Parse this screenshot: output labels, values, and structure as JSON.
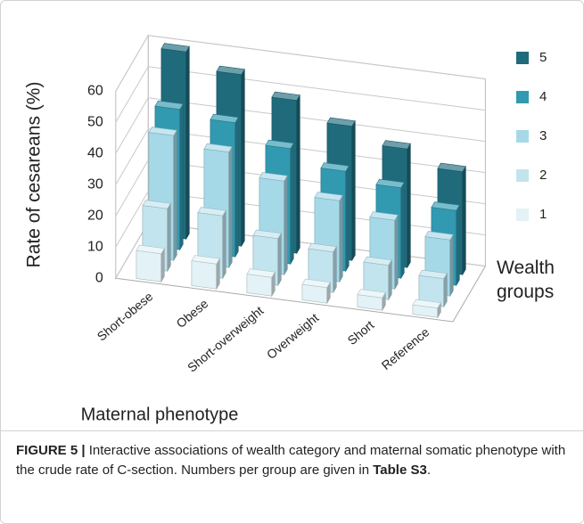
{
  "chart_data": {
    "type": "bar3d",
    "y_label": "Rate of cesareans (%)",
    "x_label": "Maternal phenotype",
    "legend_title": "Wealth groups",
    "categories": [
      "Short-obese",
      "Obese",
      "Short-overweight",
      "Overweight",
      "Short",
      "Reference"
    ],
    "series": [
      {
        "name": "1",
        "color": "#e2f2f7",
        "values": [
          9,
          8,
          6,
          5,
          4,
          3
        ]
      },
      {
        "name": "2",
        "color": "#c2e4ee",
        "values": [
          20,
          20,
          15,
          13,
          11,
          9
        ]
      },
      {
        "name": "3",
        "color": "#a6d9e8",
        "values": [
          40,
          37,
          30,
          26,
          22,
          18
        ]
      },
      {
        "name": "4",
        "color": "#3199b0",
        "values": [
          45,
          43,
          37,
          32,
          29,
          24
        ]
      },
      {
        "name": "5",
        "color": "#1f6b7c",
        "values": [
          60,
          55,
          49,
          43,
          38,
          33
        ]
      }
    ],
    "ylim": [
      0,
      60
    ],
    "yticks": [
      0,
      10,
      20,
      30,
      40,
      50,
      60
    ],
    "grid": true,
    "legend": "right",
    "caption": {
      "label": "FIGURE 5 |",
      "text": "Interactive associations of wealth category and maternal somatic phenotype with the crude rate of C-section. Numbers per group are given in",
      "ref": "Table S3",
      "end": "."
    }
  }
}
